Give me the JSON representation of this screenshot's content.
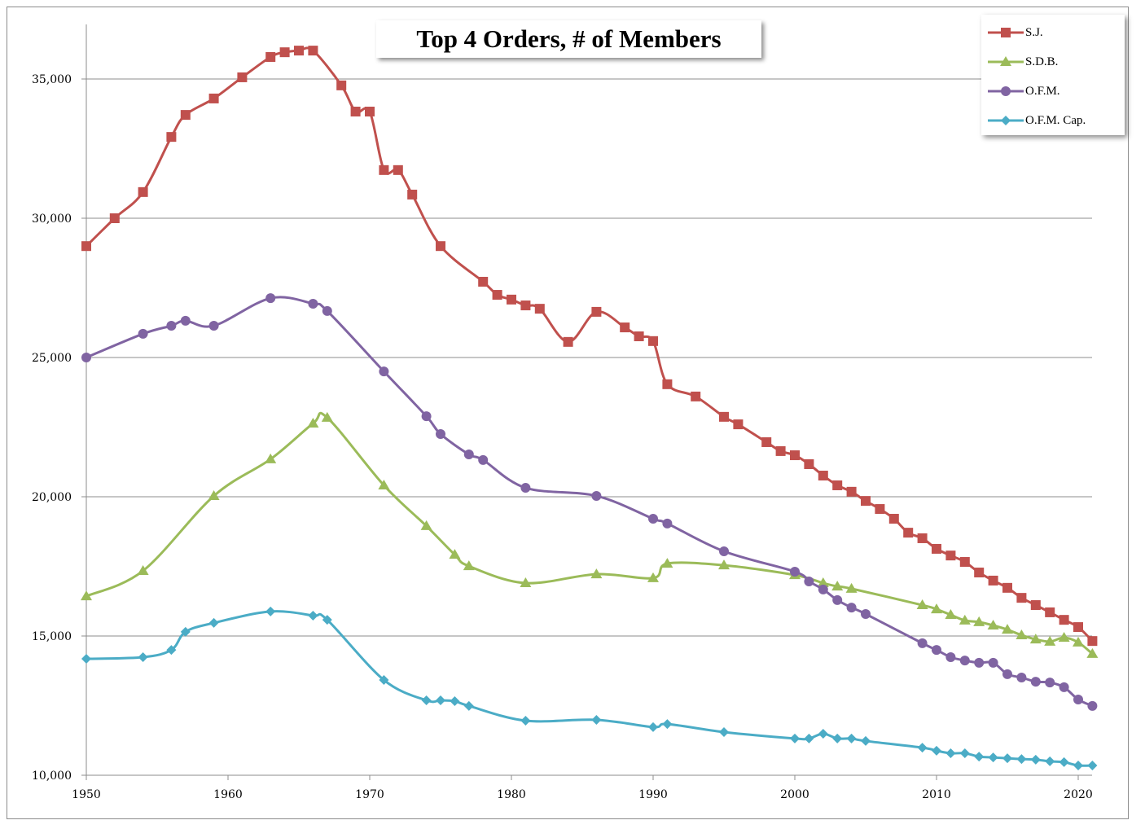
{
  "chart_data": {
    "type": "line",
    "title": "Top 4 Orders, # of Members",
    "xlabel": "",
    "ylabel": "",
    "xlim": [
      1950,
      2021
    ],
    "ylim": [
      10000,
      37000
    ],
    "x_ticks": [
      "1950",
      "1960",
      "1970",
      "1980",
      "1990",
      "2000",
      "2010",
      "2020"
    ],
    "y_ticks": [
      "10,000",
      "15,000",
      "20,000",
      "25,000",
      "30,000",
      "35,000"
    ],
    "grid": "horizontal",
    "legend": "top-right",
    "series": [
      {
        "name": "S.J.",
        "color": "#C0504D",
        "marker": "square",
        "points": [
          [
            1950,
            29000
          ],
          [
            1952,
            30000
          ],
          [
            1954,
            30940
          ],
          [
            1956,
            32920
          ],
          [
            1957,
            33710
          ],
          [
            1959,
            34300
          ],
          [
            1961,
            35060
          ],
          [
            1963,
            35790
          ],
          [
            1964,
            35960
          ],
          [
            1965,
            36020
          ],
          [
            1966,
            36020
          ],
          [
            1968,
            34770
          ],
          [
            1969,
            33830
          ],
          [
            1970,
            33830
          ],
          [
            1971,
            31730
          ],
          [
            1972,
            31730
          ],
          [
            1973,
            30850
          ],
          [
            1975,
            29000
          ],
          [
            1978,
            27720
          ],
          [
            1979,
            27250
          ],
          [
            1980,
            27080
          ],
          [
            1981,
            26870
          ],
          [
            1982,
            26750
          ],
          [
            1984,
            25560
          ],
          [
            1986,
            26640
          ],
          [
            1988,
            26080
          ],
          [
            1989,
            25760
          ],
          [
            1990,
            25590
          ],
          [
            1991,
            24040
          ],
          [
            1993,
            23600
          ],
          [
            1995,
            22870
          ],
          [
            1996,
            22600
          ],
          [
            1998,
            21960
          ],
          [
            1999,
            21640
          ],
          [
            2000,
            21490
          ],
          [
            2001,
            21170
          ],
          [
            2002,
            20760
          ],
          [
            2003,
            20410
          ],
          [
            2004,
            20180
          ],
          [
            2005,
            19850
          ],
          [
            2006,
            19560
          ],
          [
            2007,
            19210
          ],
          [
            2008,
            18710
          ],
          [
            2009,
            18510
          ],
          [
            2010,
            18130
          ],
          [
            2011,
            17890
          ],
          [
            2012,
            17660
          ],
          [
            2013,
            17280
          ],
          [
            2014,
            16990
          ],
          [
            2015,
            16730
          ],
          [
            2016,
            16370
          ],
          [
            2017,
            16110
          ],
          [
            2018,
            15850
          ],
          [
            2019,
            15580
          ],
          [
            2020,
            15320
          ],
          [
            2021,
            14820
          ]
        ]
      },
      {
        "name": "S.D.B.",
        "color": "#9BBB59",
        "marker": "triangle",
        "points": [
          [
            1950,
            16430
          ],
          [
            1954,
            17340
          ],
          [
            1959,
            20030
          ],
          [
            1963,
            21350
          ],
          [
            1966,
            22630
          ],
          [
            1967,
            22840
          ],
          [
            1971,
            20410
          ],
          [
            1974,
            18950
          ],
          [
            1976,
            17920
          ],
          [
            1977,
            17510
          ],
          [
            1981,
            16900
          ],
          [
            1986,
            17220
          ],
          [
            1990,
            17080
          ],
          [
            1991,
            17600
          ],
          [
            1995,
            17540
          ],
          [
            2000,
            17190
          ],
          [
            2002,
            16900
          ],
          [
            2003,
            16780
          ],
          [
            2004,
            16700
          ],
          [
            2009,
            16110
          ],
          [
            2010,
            15960
          ],
          [
            2011,
            15760
          ],
          [
            2012,
            15560
          ],
          [
            2013,
            15500
          ],
          [
            2014,
            15380
          ],
          [
            2015,
            15230
          ],
          [
            2016,
            15030
          ],
          [
            2017,
            14880
          ],
          [
            2018,
            14800
          ],
          [
            2019,
            14940
          ],
          [
            2020,
            14770
          ],
          [
            2021,
            14360
          ]
        ]
      },
      {
        "name": "O.F.M.",
        "color": "#8064A2",
        "marker": "circle",
        "points": [
          [
            1950,
            25000
          ],
          [
            1954,
            25850
          ],
          [
            1956,
            26140
          ],
          [
            1957,
            26320
          ],
          [
            1959,
            26140
          ],
          [
            1963,
            27130
          ],
          [
            1966,
            26930
          ],
          [
            1967,
            26670
          ],
          [
            1971,
            24500
          ],
          [
            1974,
            22890
          ],
          [
            1975,
            22250
          ],
          [
            1977,
            21520
          ],
          [
            1978,
            21320
          ],
          [
            1981,
            20320
          ],
          [
            1986,
            20030
          ],
          [
            1990,
            19210
          ],
          [
            1991,
            19040
          ],
          [
            1995,
            18040
          ],
          [
            2000,
            17310
          ],
          [
            2001,
            16960
          ],
          [
            2002,
            16670
          ],
          [
            2003,
            16290
          ],
          [
            2004,
            16020
          ],
          [
            2005,
            15790
          ],
          [
            2009,
            14740
          ],
          [
            2010,
            14500
          ],
          [
            2011,
            14240
          ],
          [
            2012,
            14120
          ],
          [
            2013,
            14040
          ],
          [
            2014,
            14040
          ],
          [
            2015,
            13630
          ],
          [
            2016,
            13510
          ],
          [
            2017,
            13360
          ],
          [
            2018,
            13330
          ],
          [
            2019,
            13160
          ],
          [
            2020,
            12720
          ],
          [
            2021,
            12490
          ]
        ]
      },
      {
        "name": "O.F.M. Cap.",
        "color": "#4BACC6",
        "marker": "diamond",
        "points": [
          [
            1950,
            14180
          ],
          [
            1954,
            14240
          ],
          [
            1956,
            14500
          ],
          [
            1957,
            15150
          ],
          [
            1959,
            15470
          ],
          [
            1963,
            15880
          ],
          [
            1966,
            15730
          ],
          [
            1967,
            15580
          ],
          [
            1971,
            13420
          ],
          [
            1974,
            12690
          ],
          [
            1975,
            12690
          ],
          [
            1976,
            12660
          ],
          [
            1977,
            12490
          ],
          [
            1981,
            11960
          ],
          [
            1986,
            11990
          ],
          [
            1990,
            11730
          ],
          [
            1991,
            11840
          ],
          [
            1995,
            11550
          ],
          [
            2000,
            11320
          ],
          [
            2001,
            11320
          ],
          [
            2002,
            11490
          ],
          [
            2003,
            11320
          ],
          [
            2004,
            11320
          ],
          [
            2005,
            11230
          ],
          [
            2009,
            10990
          ],
          [
            2010,
            10880
          ],
          [
            2011,
            10790
          ],
          [
            2012,
            10790
          ],
          [
            2013,
            10670
          ],
          [
            2014,
            10640
          ],
          [
            2015,
            10610
          ],
          [
            2016,
            10580
          ],
          [
            2017,
            10560
          ],
          [
            2018,
            10500
          ],
          [
            2019,
            10470
          ],
          [
            2020,
            10350
          ],
          [
            2021,
            10350
          ]
        ]
      }
    ]
  }
}
